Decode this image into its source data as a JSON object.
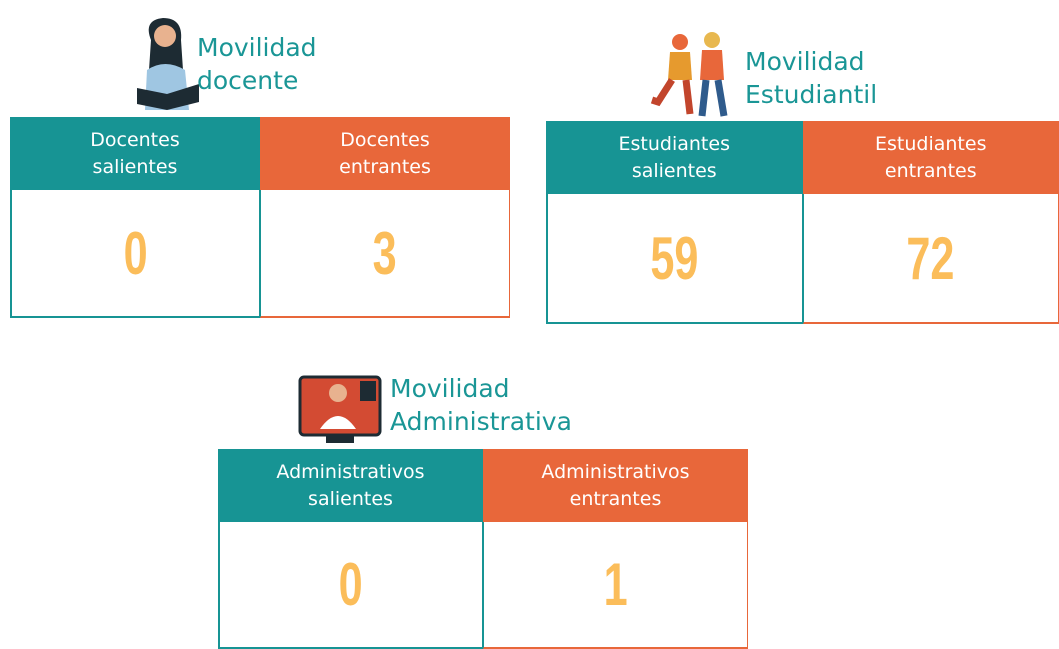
{
  "sections": [
    {
      "title": [
        "Movilidad",
        "docente"
      ],
      "headers": [
        "Docentes salientes",
        "Docentes entrantes"
      ],
      "values": [
        "0",
        "3"
      ]
    },
    {
      "title": [
        "Movilidad",
        "Estudiantil"
      ],
      "headers": [
        "Estudiantes salientes",
        "Estudiantes entrantes"
      ],
      "values": [
        "59",
        "72"
      ]
    },
    {
      "title": [
        "Movilidad",
        "Administrativa"
      ],
      "headers": [
        "Administrativos salientes",
        "Administrativos entrantes"
      ],
      "values": [
        "0",
        "1"
      ]
    }
  ]
}
